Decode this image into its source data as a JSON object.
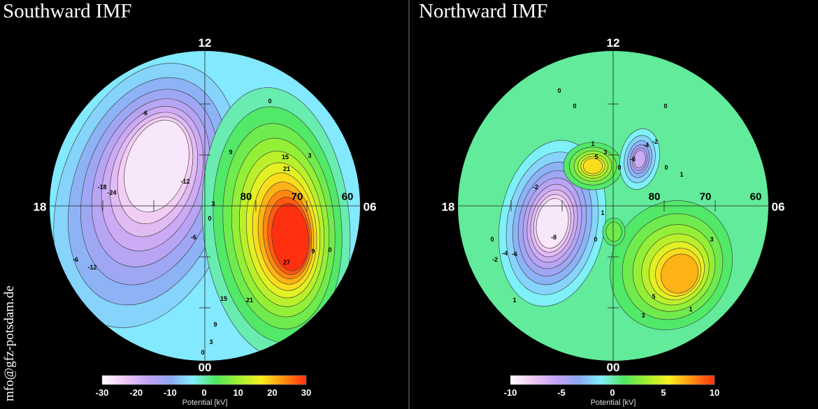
{
  "chart_data": [
    {
      "type": "heatmap",
      "subtype": "polar-contour",
      "title": "Southward IMF",
      "hour_labels": {
        "top": "12",
        "left": "18",
        "right": "06",
        "bottom": "00"
      },
      "latitude_labels": [
        "80",
        "70",
        "60"
      ],
      "colorbar": {
        "label": "Potential [kV]",
        "range": [
          -30,
          30
        ],
        "ticks": [
          "-30",
          "-20",
          "-10",
          "0",
          "10",
          "20",
          "30"
        ]
      },
      "contour_step": 3,
      "min_approx": -27,
      "max_approx": 30,
      "contour_labels": [
        "-6",
        "0",
        "9",
        "15",
        "21",
        "3",
        "-18",
        "-24",
        "-12",
        "3",
        "0",
        "-6",
        "-6",
        "-12",
        "9",
        "0",
        "27",
        "15",
        "21",
        "9",
        "3",
        "0"
      ]
    },
    {
      "type": "heatmap",
      "subtype": "polar-contour",
      "title": "Northward IMF",
      "hour_labels": {
        "top": "12",
        "left": "18",
        "right": "06",
        "bottom": "00"
      },
      "latitude_labels": [
        "80",
        "70",
        "60"
      ],
      "colorbar": {
        "label": "Potential [kV]",
        "range": [
          -10,
          10
        ],
        "ticks": [
          "-10",
          "-5",
          "0",
          "5",
          "10"
        ]
      },
      "contour_step": 1,
      "min_approx": -9,
      "max_approx": 7,
      "contour_labels": [
        "0",
        "0",
        "0",
        "1",
        "3",
        "5",
        "0",
        "-2",
        "-4",
        "-6",
        "0",
        "1",
        "-2",
        "1",
        "-8",
        "0",
        "0",
        "-6",
        "-4",
        "-2",
        "3",
        "5",
        "3",
        "1",
        "1"
      ]
    }
  ],
  "credit": "mfo@gfz-potsdam.de",
  "colormap": [
    "#ffffff",
    "#f0c8f4",
    "#c4a4f4",
    "#8fa8f4",
    "#80f0ff",
    "#50e860",
    "#a0f030",
    "#f8f020",
    "#ff9010",
    "#ff3010"
  ]
}
